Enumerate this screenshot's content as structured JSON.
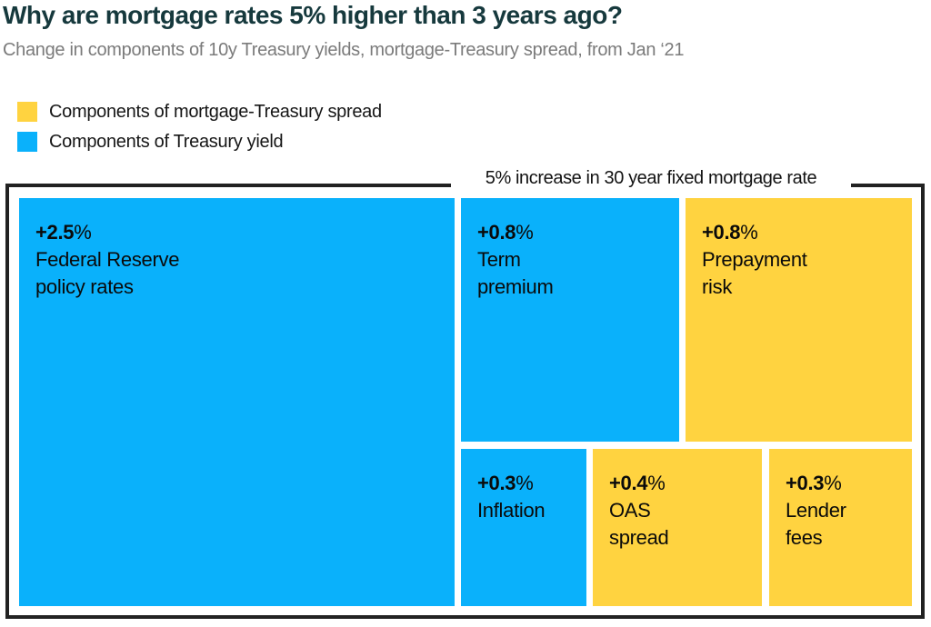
{
  "header": {
    "title": "Why are mortgage rates 5% higher than 3 years ago?",
    "subtitle": "Change in components of 10y Treasury yields, mortgage-Treasury spread, from Jan ‘21"
  },
  "legend": {
    "items": [
      {
        "label": "Components of mortgage-Treasury spread",
        "color": "#FFD340"
      },
      {
        "label": "Components of Treasury yield",
        "color": "#0AB1FB"
      }
    ]
  },
  "colors": {
    "yellow": "#FFD340",
    "blue": "#0AB1FB",
    "title": "#16393d",
    "subtitle": "#7b7b7b",
    "frame": "#222222",
    "block_text": "#0a0a0a"
  },
  "chart_data": {
    "type": "treemap",
    "title": "Why are mortgage rates 5% higher than 3 years ago?",
    "subtitle": "Change in components of 10y Treasury yields, mortgage-Treasury spread, from Jan ‘21",
    "total_label": "5% increase in 30 year fixed mortgage rate",
    "total_value_pct": 5,
    "legend": [
      {
        "group": "Components of mortgage-Treasury spread",
        "color": "#FFD340"
      },
      {
        "group": "Components of Treasury yield",
        "color": "#0AB1FB"
      }
    ],
    "blocks": [
      {
        "name": "Federal Reserve policy rates",
        "label_lines": [
          "Federal Reserve",
          "policy rates"
        ],
        "value": 2.5,
        "value_label": "+2.5",
        "value_suffix": "%",
        "group": "Components of Treasury yield",
        "color": "#0AB1FB"
      },
      {
        "name": "Term premium",
        "label_lines": [
          "Term",
          "premium"
        ],
        "value": 0.8,
        "value_label": "+0.8",
        "value_suffix": "%",
        "group": "Components of Treasury yield",
        "color": "#0AB1FB"
      },
      {
        "name": "Prepayment risk",
        "label_lines": [
          "Prepayment",
          "risk"
        ],
        "value": 0.8,
        "value_label": "+0.8",
        "value_suffix": "%",
        "group": "Components of mortgage-Treasury spread",
        "color": "#FFD340"
      },
      {
        "name": "Inflation",
        "label_lines": [
          "Inflation"
        ],
        "value": 0.3,
        "value_label": "+0.3",
        "value_suffix": "%",
        "group": "Components of Treasury yield",
        "color": "#0AB1FB"
      },
      {
        "name": "OAS spread",
        "label_lines": [
          "OAS",
          "spread"
        ],
        "value": 0.4,
        "value_label": "+0.4",
        "value_suffix": "%",
        "group": "Components of mortgage-Treasury spread",
        "color": "#FFD340"
      },
      {
        "name": "Lender fees",
        "label_lines": [
          "Lender",
          "fees"
        ],
        "value": 0.3,
        "value_label": "+0.3",
        "value_suffix": "%",
        "group": "Components of mortgage-Treasury spread",
        "color": "#FFD340"
      }
    ]
  }
}
